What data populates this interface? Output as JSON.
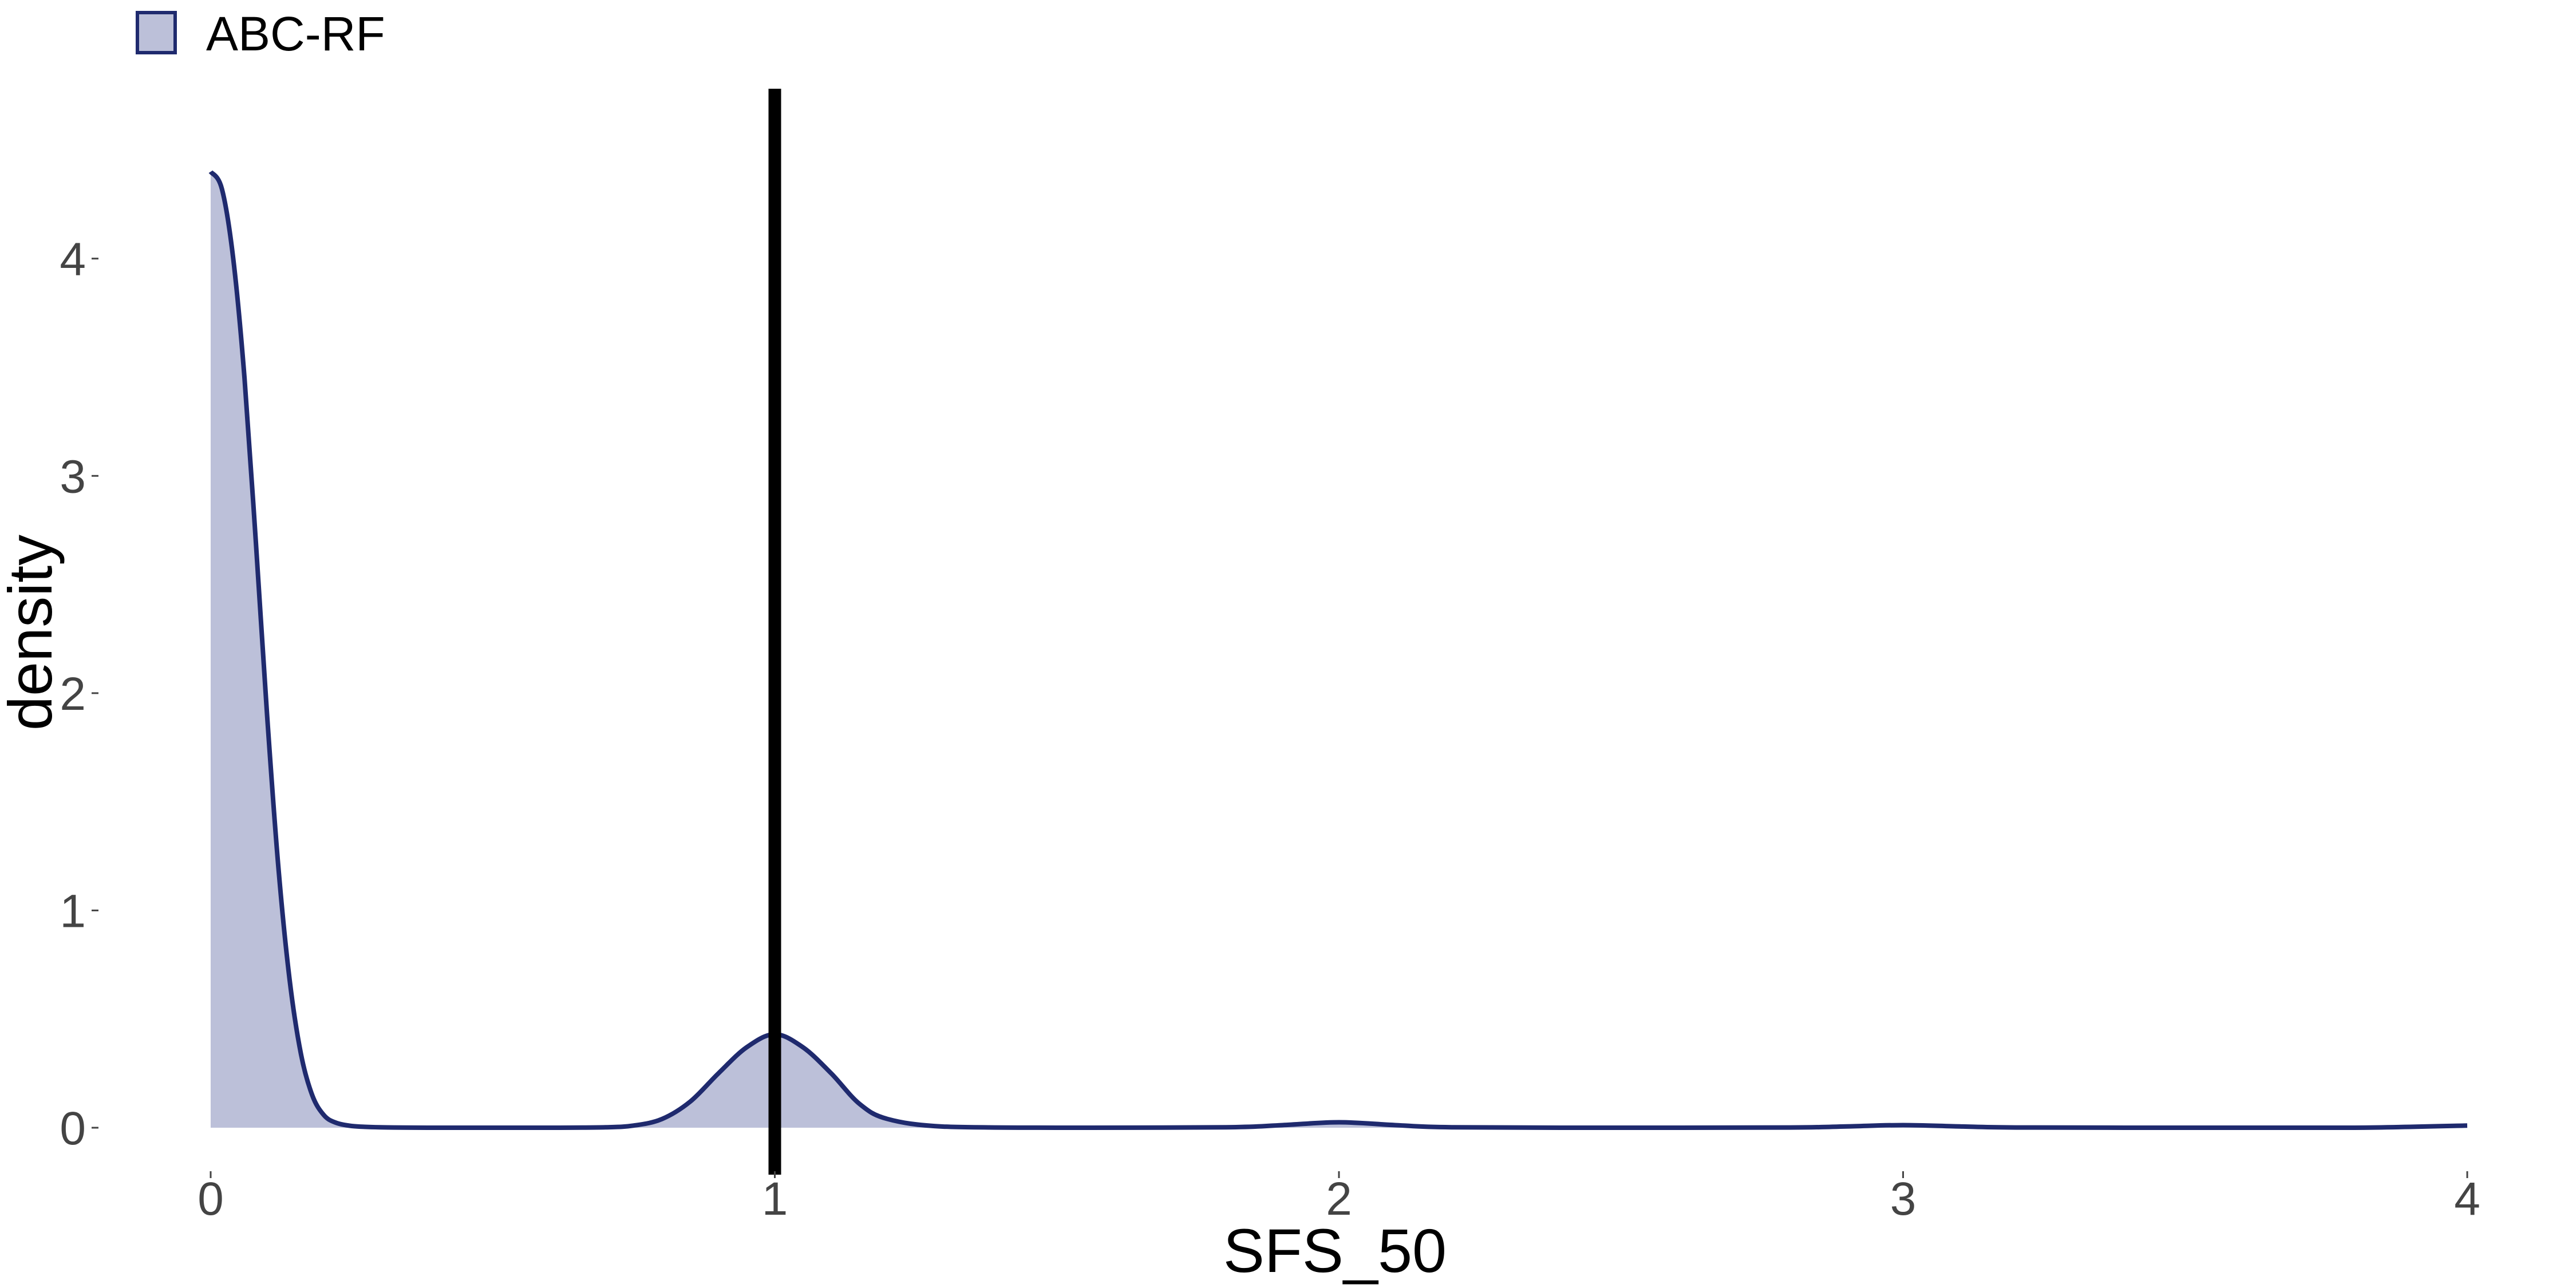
{
  "chart_data": {
    "type": "area",
    "title": "",
    "xlabel": "SFS_50",
    "ylabel": "density",
    "xlim": [
      0,
      4
    ],
    "ylim": [
      0,
      4.65
    ],
    "x_ticks": [
      "0",
      "1",
      "2",
      "3",
      "4"
    ],
    "y_ticks": [
      "0",
      "1",
      "2",
      "3",
      "4"
    ],
    "grid": false,
    "legend_position": "top-left",
    "series": [
      {
        "name": "ABC-RF",
        "fill_color": "#bcc0d9",
        "line_color": "#1f2a6e",
        "x": [
          0,
          0.02,
          0.04,
          0.06,
          0.08,
          0.1,
          0.12,
          0.14,
          0.16,
          0.18,
          0.2,
          0.22,
          0.25,
          0.3,
          0.4,
          0.5,
          0.6,
          0.7,
          0.75,
          0.8,
          0.85,
          0.9,
          0.95,
          1.0,
          1.05,
          1.1,
          1.15,
          1.2,
          1.3,
          1.5,
          1.8,
          1.9,
          2.0,
          2.1,
          2.2,
          2.5,
          2.8,
          2.9,
          3.0,
          3.1,
          3.2,
          3.5,
          3.8,
          4.0
        ],
        "y": [
          4.4,
          4.32,
          4.0,
          3.45,
          2.7,
          1.9,
          1.2,
          0.68,
          0.34,
          0.15,
          0.06,
          0.025,
          0.008,
          0.002,
          0.0,
          0.0,
          0.0,
          0.002,
          0.01,
          0.04,
          0.12,
          0.25,
          0.37,
          0.43,
          0.37,
          0.25,
          0.11,
          0.04,
          0.005,
          0.0,
          0.002,
          0.012,
          0.025,
          0.012,
          0.002,
          0.0,
          0.001,
          0.006,
          0.012,
          0.006,
          0.001,
          0.0,
          0.0,
          0.01
        ]
      }
    ],
    "annotations": [
      {
        "type": "vline",
        "x": 1.0,
        "color": "#000000"
      }
    ]
  }
}
